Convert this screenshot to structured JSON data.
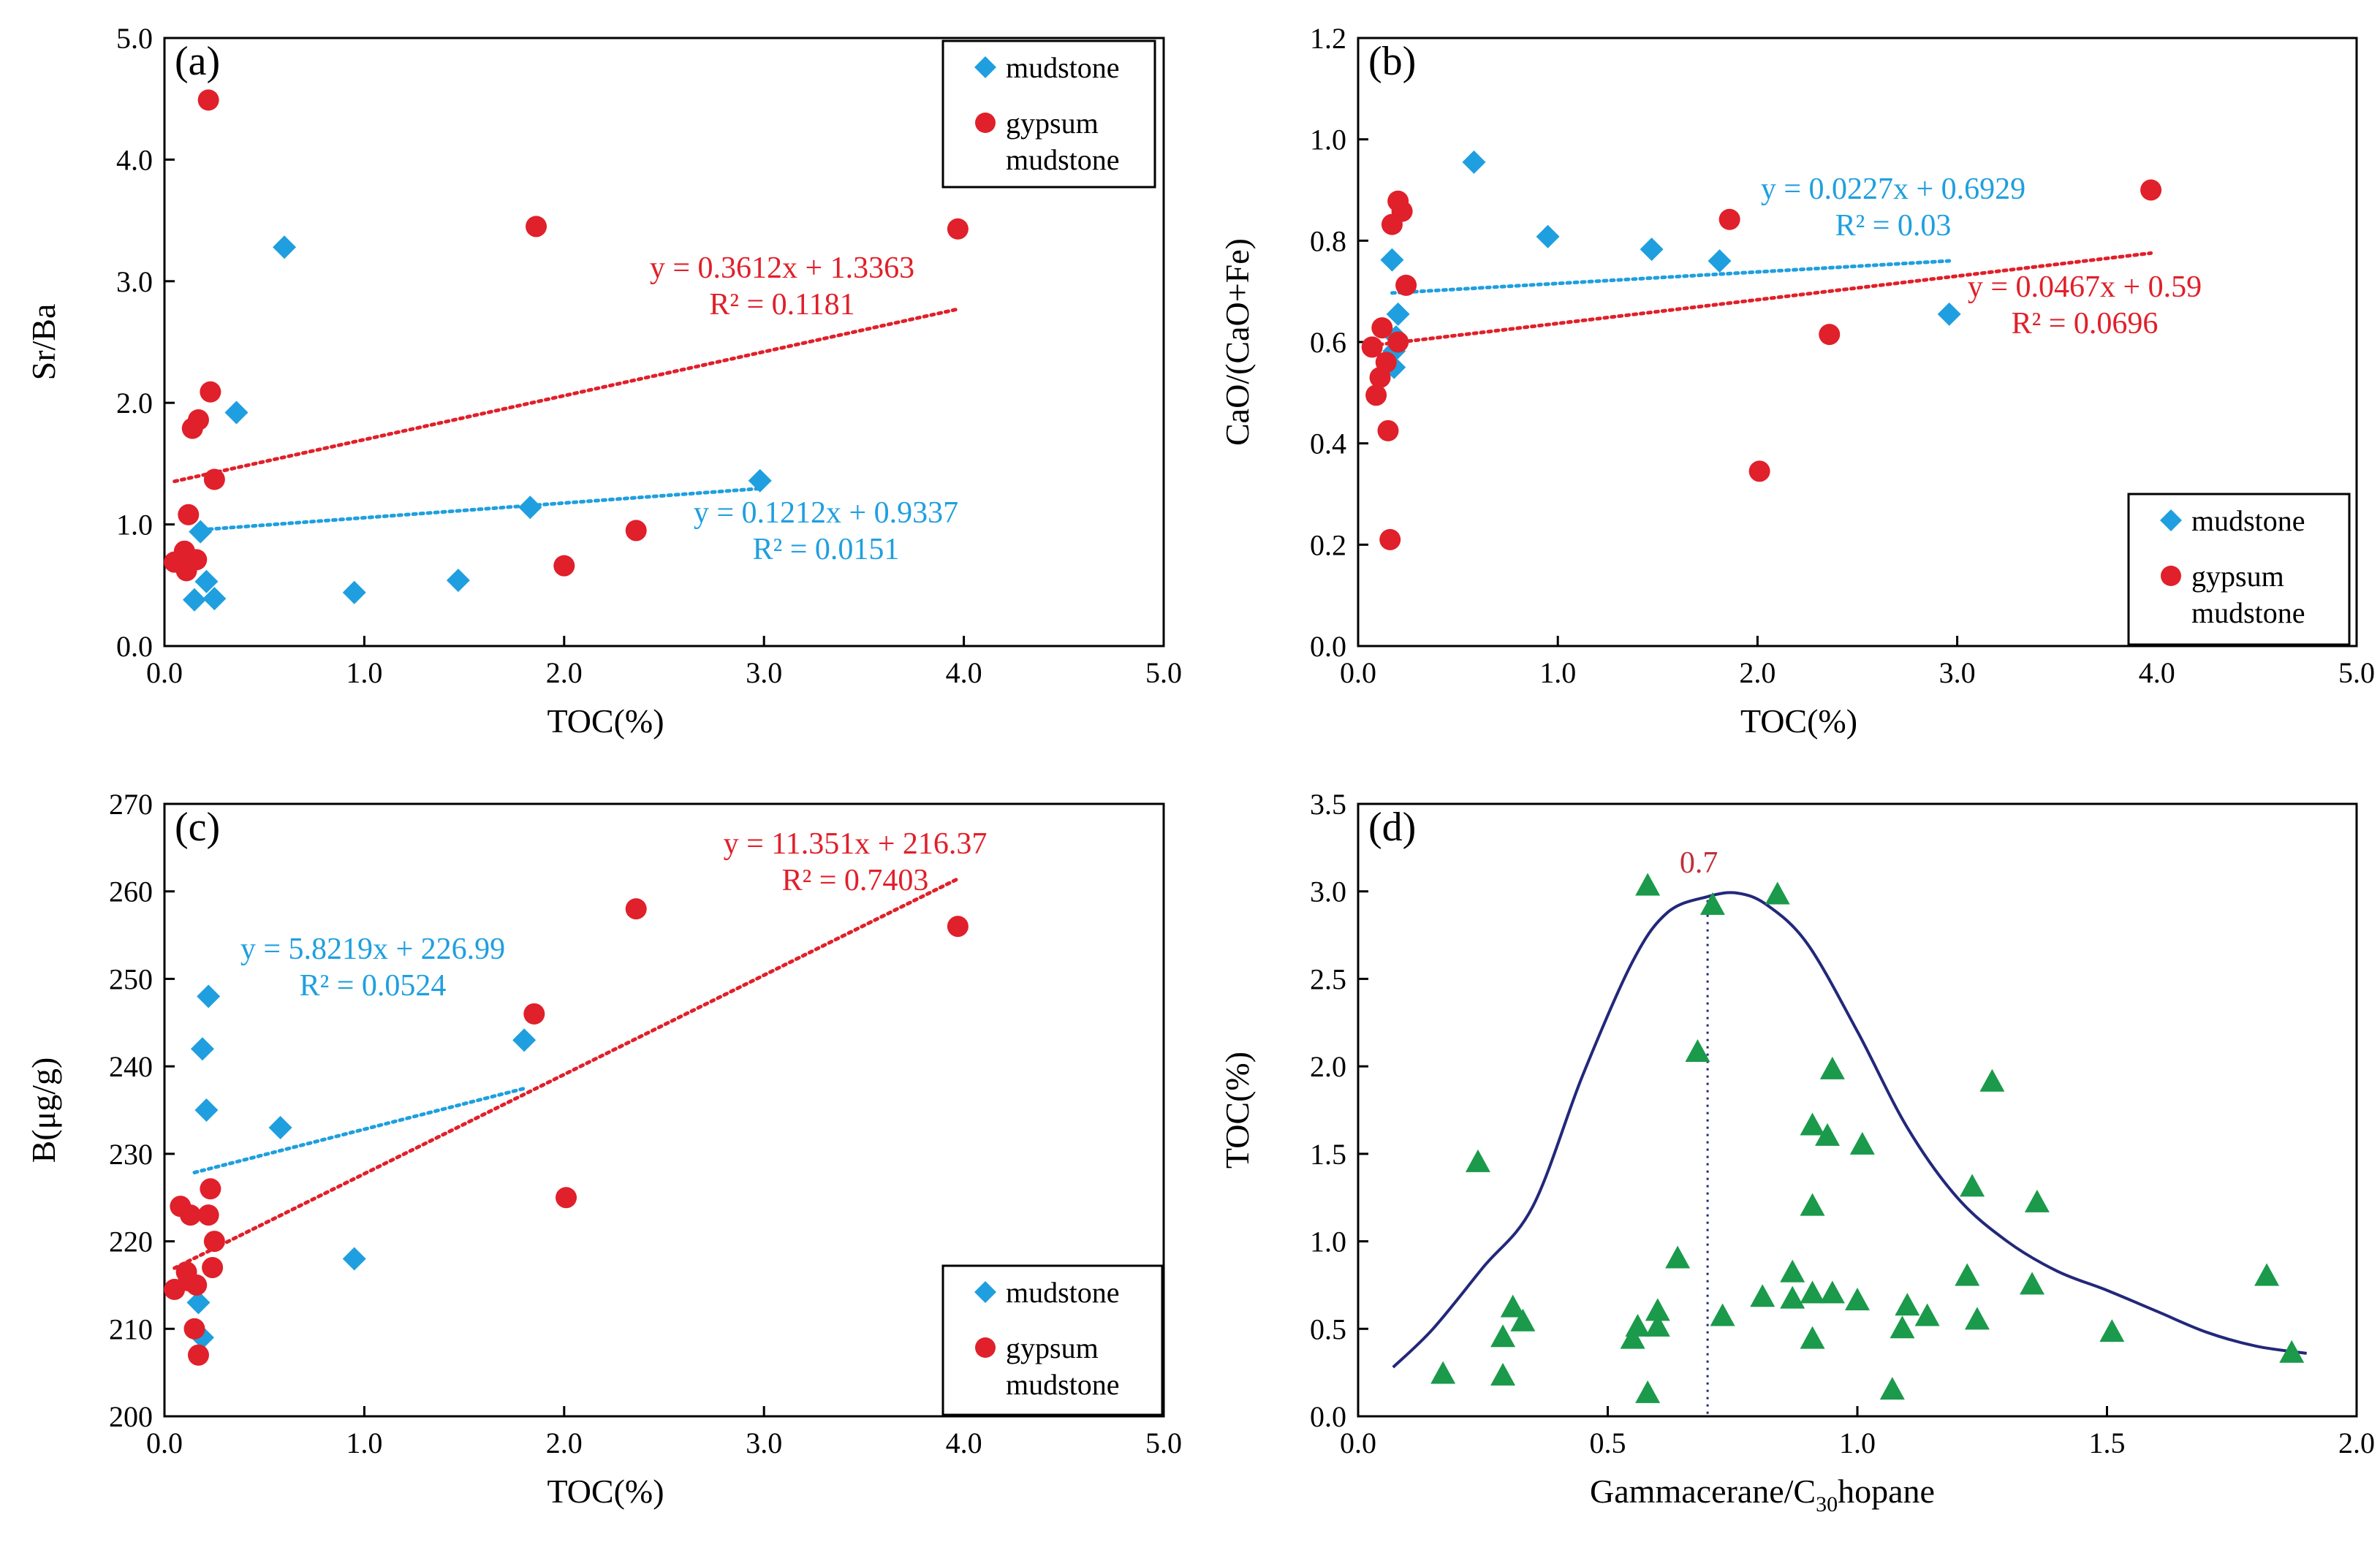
{
  "colors": {
    "mudstone": "#1f9fdf",
    "gypsum": "#e0202a",
    "triangle": "#1a9a4a",
    "curve": "#22287a",
    "axis": "#000000"
  },
  "chart_data": [
    {
      "id": "a",
      "type": "scatter",
      "label": "(a)",
      "xlabel": "TOC(%)",
      "ylabel": "Sr/Ba",
      "xlim": [
        0,
        5
      ],
      "ylim": [
        0,
        5
      ],
      "xticks": [
        "0.0",
        "1.0",
        "2.0",
        "3.0",
        "4.0",
        "5.0"
      ],
      "yticks": [
        "0.0",
        "1.0",
        "2.0",
        "3.0",
        "4.0",
        "5.0"
      ],
      "legend": {
        "position": "top-right",
        "mudstone": "mudstone",
        "gypsum_line1": "gypsum",
        "gypsum_line2": "mudstone"
      },
      "series": [
        {
          "name": "mudstone",
          "marker": "diamond",
          "points": [
            [
              0.6,
              3.28
            ],
            [
              0.36,
              1.92
            ],
            [
              0.18,
              0.94
            ],
            [
              0.21,
              0.53
            ],
            [
              0.15,
              0.38
            ],
            [
              0.25,
              0.39
            ],
            [
              0.95,
              0.44
            ],
            [
              1.47,
              0.54
            ],
            [
              1.83,
              1.14
            ],
            [
              2.98,
              1.36
            ]
          ]
        },
        {
          "name": "gypsum mudstone",
          "marker": "circle",
          "points": [
            [
              0.22,
              4.49
            ],
            [
              1.86,
              3.45
            ],
            [
              3.97,
              3.43
            ],
            [
              0.23,
              2.09
            ],
            [
              0.17,
              1.86
            ],
            [
              0.14,
              1.79
            ],
            [
              0.25,
              1.37
            ],
            [
              0.12,
              1.08
            ],
            [
              0.1,
              0.78
            ],
            [
              0.08,
              0.71
            ],
            [
              0.05,
              0.69
            ],
            [
              0.11,
              0.62
            ],
            [
              0.16,
              0.71
            ],
            [
              2.0,
              0.66
            ],
            [
              2.36,
              0.95
            ]
          ]
        }
      ],
      "fits": [
        {
          "series": "gypsum mudstone",
          "slope": 0.3612,
          "intercept": 1.3363,
          "x_range": [
            0.05,
            3.97
          ],
          "eq": "y = 0.3612x + 1.3363",
          "r2": "R² = 0.1181"
        },
        {
          "series": "mudstone",
          "slope": 0.1212,
          "intercept": 0.9337,
          "x_range": [
            0.15,
            2.98
          ],
          "eq": "y = 0.1212x + 0.9337",
          "r2": "R² = 0.0151"
        }
      ]
    },
    {
      "id": "b",
      "type": "scatter",
      "label": "(b)",
      "xlabel": "TOC(%)",
      "ylabel": "CaO/(CaO+Fe)",
      "xlim": [
        0,
        5
      ],
      "ylim": [
        0,
        1.2
      ],
      "xticks": [
        "0.0",
        "1.0",
        "2.0",
        "3.0",
        "4.0",
        "5.0"
      ],
      "yticks": [
        "0.0",
        "0.2",
        "0.4",
        "0.6",
        "0.8",
        "1.0",
        "1.2"
      ],
      "legend": {
        "position": "bottom-right",
        "mudstone": "mudstone",
        "gypsum_line1": "gypsum",
        "gypsum_line2": "mudstone"
      },
      "series": [
        {
          "name": "mudstone",
          "marker": "diamond",
          "points": [
            [
              0.58,
              0.955
            ],
            [
              0.17,
              0.762
            ],
            [
              0.95,
              0.808
            ],
            [
              1.47,
              0.783
            ],
            [
              1.81,
              0.76
            ],
            [
              2.96,
              0.655
            ],
            [
              0.2,
              0.655
            ],
            [
              0.19,
              0.61
            ],
            [
              0.18,
              0.582
            ],
            [
              0.18,
              0.55
            ]
          ]
        },
        {
          "name": "gypsum mudstone",
          "marker": "circle",
          "points": [
            [
              0.2,
              0.878
            ],
            [
              0.22,
              0.858
            ],
            [
              0.17,
              0.832
            ],
            [
              1.86,
              0.842
            ],
            [
              3.97,
              0.9
            ],
            [
              0.24,
              0.712
            ],
            [
              0.12,
              0.628
            ],
            [
              0.2,
              0.6
            ],
            [
              0.07,
              0.59
            ],
            [
              0.14,
              0.56
            ],
            [
              0.11,
              0.53
            ],
            [
              0.09,
              0.495
            ],
            [
              0.15,
              0.425
            ],
            [
              0.16,
              0.21
            ],
            [
              2.01,
              0.345
            ],
            [
              2.36,
              0.615
            ]
          ]
        }
      ],
      "fits": [
        {
          "series": "mudstone",
          "slope": 0.0227,
          "intercept": 0.6929,
          "x_range": [
            0.17,
            2.96
          ],
          "eq": "y = 0.0227x + 0.6929",
          "r2": "R² = 0.03"
        },
        {
          "series": "gypsum mudstone",
          "slope": 0.0467,
          "intercept": 0.59,
          "x_range": [
            0.07,
            3.97
          ],
          "eq": "y = 0.0467x + 0.59",
          "r2": "R² = 0.0696"
        }
      ]
    },
    {
      "id": "c",
      "type": "scatter",
      "label": "(c)",
      "xlabel": "TOC(%)",
      "ylabel": "B(μg/g)",
      "xlim": [
        0,
        5
      ],
      "ylim": [
        200,
        270
      ],
      "xticks": [
        "0.0",
        "1.0",
        "2.0",
        "3.0",
        "4.0",
        "5.0"
      ],
      "yticks": [
        "200",
        "210",
        "220",
        "230",
        "240",
        "250",
        "260",
        "270"
      ],
      "legend": {
        "position": "bottom-right",
        "mudstone": "mudstone",
        "gypsum_line1": "gypsum",
        "gypsum_line2": "mudstone"
      },
      "series": [
        {
          "name": "mudstone",
          "marker": "diamond",
          "points": [
            [
              0.22,
              248
            ],
            [
              0.19,
              242
            ],
            [
              0.21,
              235
            ],
            [
              0.58,
              233
            ],
            [
              1.8,
              243
            ],
            [
              0.95,
              218
            ],
            [
              0.17,
              213
            ],
            [
              0.19,
              209
            ]
          ]
        },
        {
          "name": "gypsum mudstone",
          "marker": "circle",
          "points": [
            [
              2.36,
              258
            ],
            [
              3.97,
              256
            ],
            [
              1.85,
              246
            ],
            [
              2.01,
              225
            ],
            [
              0.08,
              224
            ],
            [
              0.13,
              223
            ],
            [
              0.22,
              223
            ],
            [
              0.23,
              226
            ],
            [
              0.24,
              217
            ],
            [
              0.25,
              220
            ],
            [
              0.11,
              216.5
            ],
            [
              0.12,
              215.5
            ],
            [
              0.05,
              214.5
            ],
            [
              0.16,
              215
            ],
            [
              0.15,
              210
            ],
            [
              0.17,
              207
            ]
          ]
        }
      ],
      "fits": [
        {
          "series": "gypsum mudstone",
          "slope": 11.351,
          "intercept": 216.37,
          "x_range": [
            0.05,
            3.97
          ],
          "eq": "y = 11.351x + 216.37",
          "r2": "R² = 0.7403"
        },
        {
          "series": "mudstone",
          "slope": 5.8219,
          "intercept": 226.99,
          "x_range": [
            0.15,
            1.8
          ],
          "eq": "y = 5.8219x + 226.99",
          "r2": "R² = 0.0524"
        }
      ]
    },
    {
      "id": "d",
      "type": "scatter",
      "label": "(d)",
      "xlabel_main": "Gammacerane/C",
      "xlabel_sub": "30",
      "xlabel_tail": "hopane",
      "ylabel": "TOC(%)",
      "xlim": [
        0,
        2
      ],
      "ylim": [
        0,
        3.5
      ],
      "xticks": [
        "0.0",
        "0.5",
        "1.0",
        "1.5",
        "2.0"
      ],
      "yticks": [
        "0.0",
        "0.5",
        "1.0",
        "1.5",
        "2.0",
        "2.5",
        "3.0",
        "3.5"
      ],
      "annotation": {
        "text": "0.7",
        "x": 0.7
      },
      "series": [
        {
          "name": "samples",
          "marker": "triangle",
          "points": [
            [
              0.58,
              3.03
            ],
            [
              0.84,
              2.98
            ],
            [
              0.71,
              2.92
            ],
            [
              0.68,
              2.08
            ],
            [
              0.95,
              1.98
            ],
            [
              1.27,
              1.91
            ],
            [
              0.91,
              1.66
            ],
            [
              0.94,
              1.6
            ],
            [
              1.01,
              1.55
            ],
            [
              0.24,
              1.45
            ],
            [
              1.23,
              1.31
            ],
            [
              1.36,
              1.22
            ],
            [
              0.91,
              1.2
            ],
            [
              0.64,
              0.9
            ],
            [
              0.87,
              0.82
            ],
            [
              1.22,
              0.8
            ],
            [
              1.82,
              0.8
            ],
            [
              1.35,
              0.75
            ],
            [
              0.81,
              0.68
            ],
            [
              0.87,
              0.67
            ],
            [
              0.91,
              0.7
            ],
            [
              0.95,
              0.7
            ],
            [
              1.0,
              0.66
            ],
            [
              0.6,
              0.6
            ],
            [
              0.31,
              0.62
            ],
            [
              1.1,
              0.63
            ],
            [
              0.33,
              0.54
            ],
            [
              0.56,
              0.51
            ],
            [
              0.6,
              0.51
            ],
            [
              0.73,
              0.57
            ],
            [
              1.14,
              0.57
            ],
            [
              1.24,
              0.55
            ],
            [
              0.29,
              0.45
            ],
            [
              0.55,
              0.44
            ],
            [
              0.91,
              0.44
            ],
            [
              1.09,
              0.5
            ],
            [
              1.51,
              0.48
            ],
            [
              0.17,
              0.24
            ],
            [
              0.29,
              0.23
            ],
            [
              0.58,
              0.13
            ],
            [
              1.07,
              0.15
            ],
            [
              1.87,
              0.36
            ]
          ]
        }
      ],
      "curve": [
        [
          0.07,
          0.28
        ],
        [
          0.15,
          0.5
        ],
        [
          0.25,
          0.85
        ],
        [
          0.35,
          1.2
        ],
        [
          0.45,
          1.95
        ],
        [
          0.55,
          2.6
        ],
        [
          0.62,
          2.88
        ],
        [
          0.7,
          2.97
        ],
        [
          0.76,
          2.99
        ],
        [
          0.82,
          2.92
        ],
        [
          0.9,
          2.7
        ],
        [
          1.0,
          2.2
        ],
        [
          1.1,
          1.65
        ],
        [
          1.2,
          1.25
        ],
        [
          1.3,
          1.0
        ],
        [
          1.4,
          0.83
        ],
        [
          1.5,
          0.72
        ],
        [
          1.6,
          0.6
        ],
        [
          1.7,
          0.48
        ],
        [
          1.8,
          0.4
        ],
        [
          1.9,
          0.36
        ]
      ]
    }
  ]
}
